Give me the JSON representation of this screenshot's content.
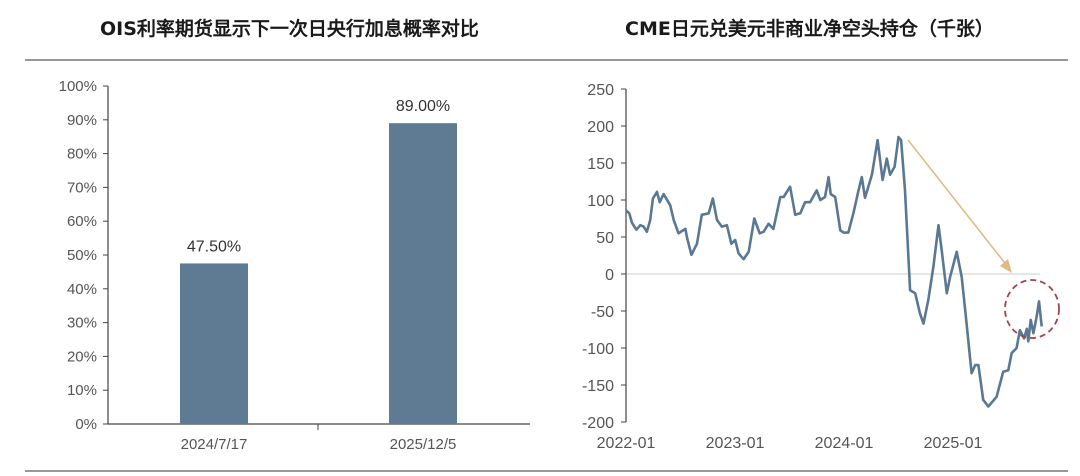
{
  "chart_data": [
    {
      "type": "bar",
      "title": "OIS利率期货显示下一次日央行加息概率对比",
      "categories": [
        "2024/7/17",
        "2025/12/5"
      ],
      "values": [
        47.5,
        89.0
      ],
      "data_labels": [
        "47.50%",
        "89.00%"
      ],
      "ylim": [
        0,
        100
      ],
      "yticks": [
        "0%",
        "10%",
        "20%",
        "30%",
        "40%",
        "50%",
        "60%",
        "70%",
        "80%",
        "90%",
        "100%"
      ],
      "bar_color": "#5f7a93",
      "grid": false
    },
    {
      "type": "line",
      "title": "CME日元兑美元非商业净空头持仓（千张）",
      "ylim": [
        -200,
        250
      ],
      "yticks": [
        "250",
        "200",
        "150",
        "100",
        "50",
        "0",
        "-50",
        "-100",
        "-150",
        "-200"
      ],
      "xticks": [
        "2022-01",
        "2023-01",
        "2024-01",
        "2025-01"
      ],
      "line_color": "#5a7893",
      "grid": false,
      "annotations": {
        "arrow_color": "#e0b882",
        "circle_color": "#a0444c"
      },
      "series": [
        {
          "x": [
            "2022-01-01",
            "2022-01-12",
            "2022-01-21",
            "2022-02-05",
            "2022-02-18",
            "2022-03-01",
            "2022-03-12",
            "2022-03-23",
            "2022-04-01",
            "2022-04-15",
            "2022-04-24",
            "2022-05-07",
            "2022-05-29",
            "2022-06-10",
            "2022-06-26",
            "2022-07-19",
            "2022-07-24",
            "2022-08-08",
            "2022-08-27",
            "2022-09-12",
            "2022-10-05",
            "2022-10-19",
            "2022-11-02",
            "2022-11-18",
            "2022-12-05",
            "2022-12-20",
            "2023-01-02",
            "2023-01-13",
            "2023-01-30",
            "2023-02-16",
            "2023-03-07",
            "2023-03-25",
            "2023-04-07",
            "2023-04-24",
            "2023-05-10",
            "2023-06-02",
            "2023-06-13",
            "2023-07-05",
            "2023-07-22",
            "2023-08-08",
            "2023-08-24",
            "2023-09-10",
            "2023-10-02",
            "2023-10-14",
            "2023-10-30",
            "2023-11-11",
            "2023-11-18",
            "2023-12-03",
            "2023-12-20",
            "2023-12-31",
            "2024-01-16",
            "2024-02-02",
            "2024-02-19",
            "2024-03-01",
            "2024-03-12",
            "2024-04-04",
            "2024-04-23",
            "2024-05-10",
            "2024-05-24",
            "2024-06-04",
            "2024-06-19",
            "2024-07-02",
            "2024-07-11",
            "2024-07-24",
            "2024-08-10",
            "2024-08-27",
            "2024-09-12",
            "2024-09-24",
            "2024-10-10",
            "2024-10-27",
            "2024-11-13",
            "2024-11-24",
            "2024-12-11",
            "2024-12-22",
            "2025-01-13",
            "2025-01-30",
            "2025-02-13",
            "2025-03-04",
            "2025-03-16",
            "2025-03-27",
            "2025-04-12",
            "2025-04-29",
            "2025-05-27",
            "2025-06-18",
            "2025-07-05",
            "2025-07-16",
            "2025-08-02",
            "2025-08-13",
            "2025-08-27",
            "2025-09-05",
            "2025-09-10",
            "2025-09-18",
            "2025-09-27",
            "2025-10-08",
            "2025-10-16",
            "2025-10-25"
          ],
          "y": [
            86,
            82,
            69,
            60,
            66,
            64,
            57,
            73,
            102,
            111,
            97,
            108,
            93,
            73,
            55,
            61,
            50,
            26,
            41,
            80,
            82,
            102,
            73,
            64,
            66,
            41,
            46,
            28,
            20,
            30,
            75,
            55,
            57,
            68,
            61,
            104,
            104,
            118,
            80,
            82,
            97,
            97,
            113,
            100,
            104,
            131,
            108,
            104,
            59,
            56,
            56,
            82,
            113,
            131,
            103,
            134,
            181,
            127,
            156,
            134,
            145,
            185,
            181,
            113,
            -22,
            -26,
            -53,
            -67,
            -35,
            10,
            66,
            32,
            -26,
            -4,
            30,
            -4,
            -58,
            -134,
            -123,
            -123,
            -170,
            -179,
            -166,
            -132,
            -130,
            -107,
            -100,
            -76,
            -87,
            -74,
            -91,
            -62,
            -80,
            -58,
            -37,
            -71
          ]
        }
      ]
    }
  ]
}
